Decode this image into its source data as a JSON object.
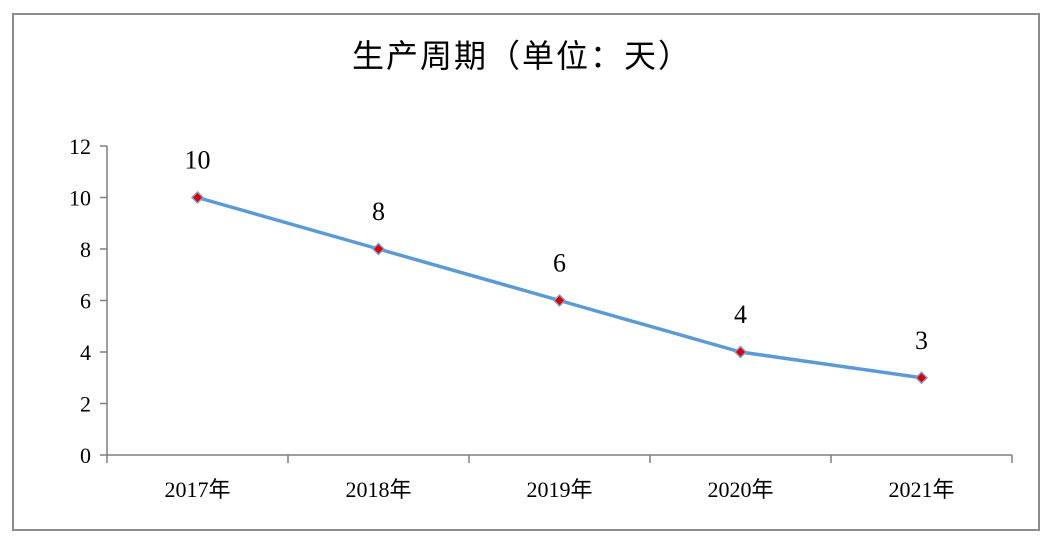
{
  "chart_data": {
    "type": "line",
    "title": "生产周期（单位：天）",
    "categories": [
      "2017年",
      "2018年",
      "2019年",
      "2020年",
      "2021年"
    ],
    "series": [
      {
        "values": [
          10,
          8,
          6,
          4,
          3
        ]
      }
    ],
    "ylim": [
      0,
      12
    ],
    "yticks": [
      0,
      2,
      4,
      6,
      8,
      10,
      12
    ],
    "data_labels": true,
    "grid": false,
    "legend": "none",
    "colors": {
      "line": "#5b9bd5",
      "marker_fill": "#e00000",
      "marker_stroke": "#7f9fd0",
      "axis": "#7f7f7f"
    }
  }
}
